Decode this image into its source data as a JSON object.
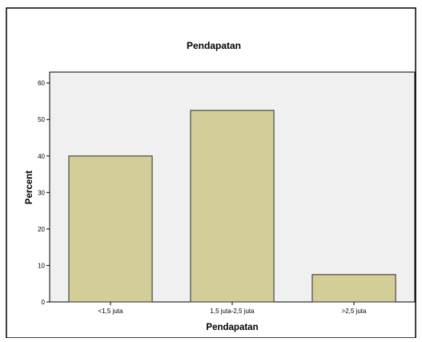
{
  "chart_data": {
    "type": "bar",
    "title": "Pendapatan",
    "xlabel": "Pendapatan",
    "ylabel": "Percent",
    "categories": [
      "<1,5 juta",
      "1,5 juta-2,5 juta",
      ">2,5 juta"
    ],
    "values": [
      40,
      52.5,
      7.5
    ],
    "ylim": [
      0,
      63
    ],
    "yticks": [
      0,
      10,
      20,
      30,
      40,
      50,
      60
    ],
    "grid": false,
    "colors": {
      "bar_fill": "#d3ce97",
      "bar_stroke": "#2a2a2a",
      "plot_background": "#f0f0f0",
      "frame": "#000000"
    }
  }
}
